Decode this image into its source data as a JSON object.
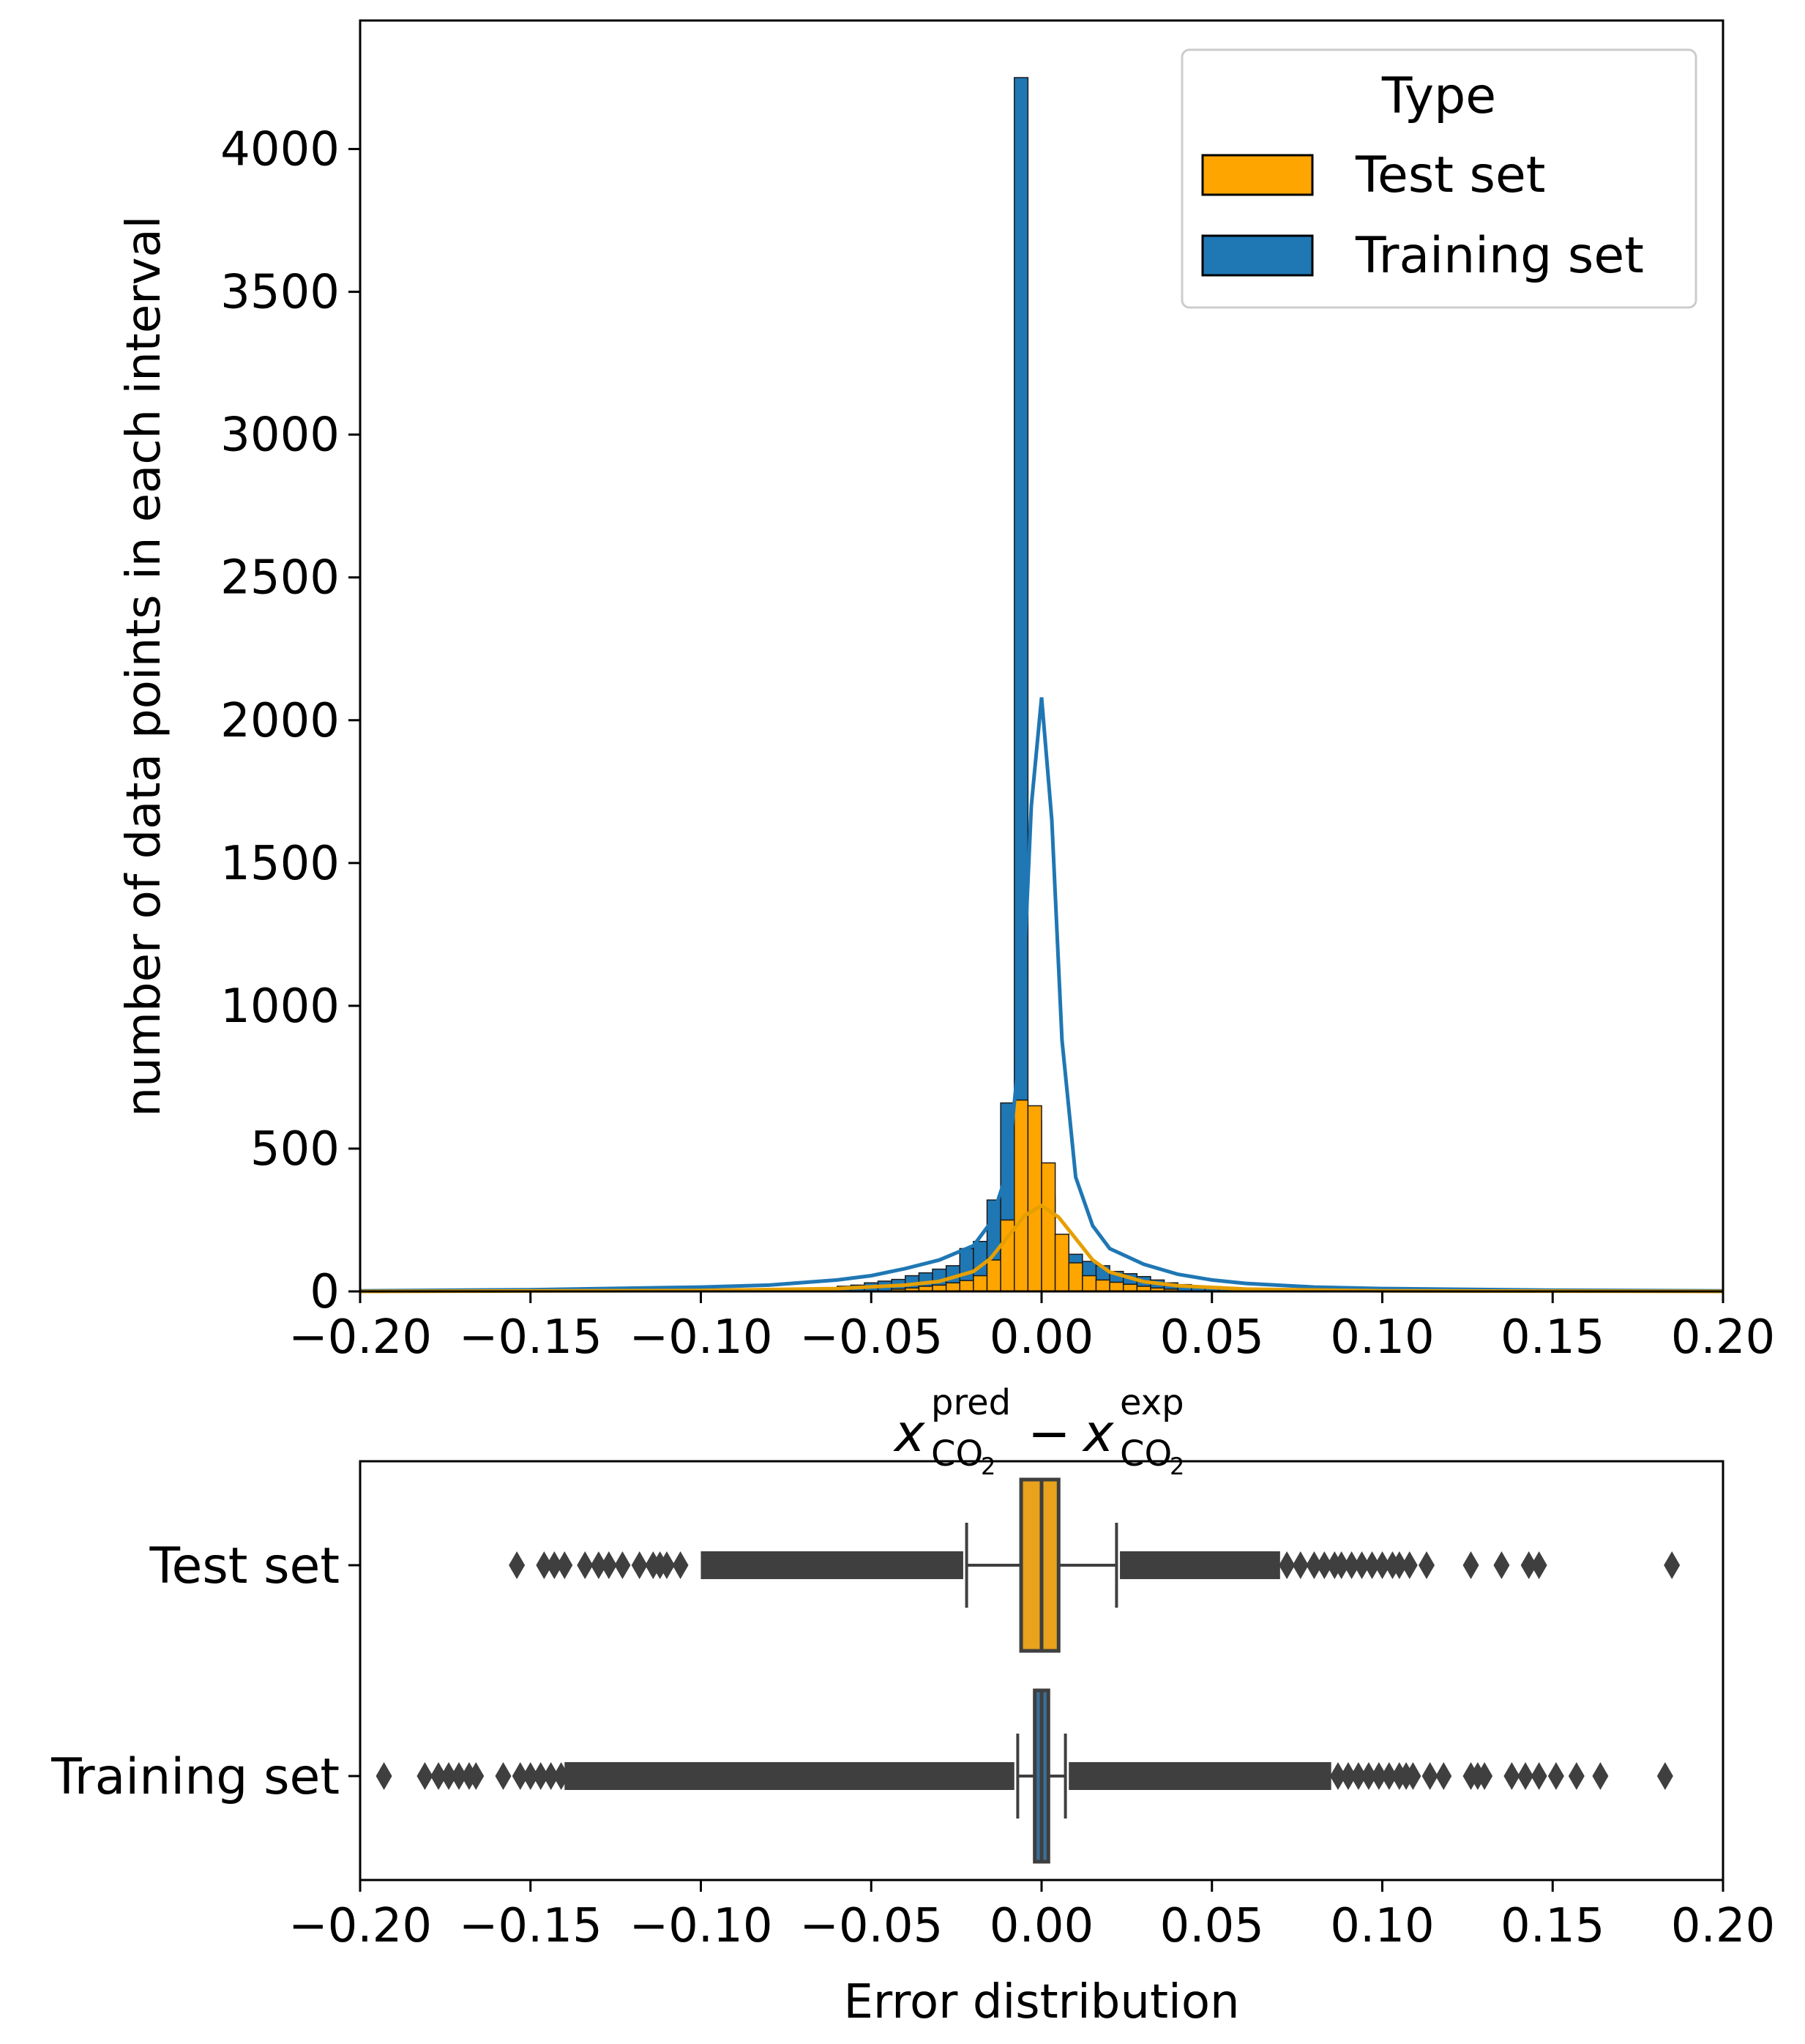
{
  "chart_data": [
    {
      "type": "histogram",
      "xlabel": "x_CO2^pred − x_CO2^exp",
      "xlabel_parts": {
        "base1": "x",
        "sup1": "pred",
        "sub1": "CO",
        "subsub1": "2",
        "op": "−",
        "base2": "x",
        "sup2": "exp",
        "sub2": "CO",
        "subsub2": "2"
      },
      "ylabel": "number of data points in each interval",
      "xlim": [
        -0.2,
        0.2
      ],
      "ylim": [
        0,
        4450
      ],
      "xticks": [
        -0.2,
        -0.15,
        -0.1,
        -0.05,
        0.0,
        0.05,
        0.1,
        0.15,
        0.2
      ],
      "xtick_labels": [
        "−0.20",
        "−0.15",
        "−0.10",
        "−0.05",
        "0.00",
        "0.05",
        "0.10",
        "0.15",
        "0.20"
      ],
      "yticks": [
        0,
        500,
        1000,
        1500,
        2000,
        2500,
        3000,
        3500,
        4000
      ],
      "ytick_labels": [
        "0",
        "500",
        "1000",
        "1500",
        "2000",
        "2500",
        "3000",
        "3500",
        "4000"
      ],
      "grid": false,
      "legend": {
        "title": "Type",
        "position": "top-right",
        "entries": [
          "Test set",
          "Training set"
        ]
      },
      "bin_width": 0.004,
      "series": [
        {
          "name": "Training set",
          "color": "#1f77b4",
          "bin_centers": [
            -0.058,
            -0.054,
            -0.05,
            -0.046,
            -0.042,
            -0.038,
            -0.034,
            -0.03,
            -0.026,
            -0.022,
            -0.018,
            -0.014,
            -0.01,
            -0.006,
            -0.002,
            0.002,
            0.006,
            0.01,
            0.014,
            0.018,
            0.022,
            0.026,
            0.03,
            0.034,
            0.038,
            0.042,
            0.046,
            0.05,
            0.054
          ],
          "counts": [
            18,
            22,
            30,
            36,
            42,
            55,
            65,
            78,
            90,
            150,
            175,
            320,
            660,
            4250,
            600,
            330,
            175,
            130,
            105,
            90,
            70,
            62,
            52,
            40,
            30,
            24,
            18,
            14,
            10
          ],
          "kde_x": [
            -0.2,
            -0.15,
            -0.1,
            -0.08,
            -0.06,
            -0.05,
            -0.04,
            -0.03,
            -0.02,
            -0.015,
            -0.01,
            -0.006,
            -0.003,
            0.0,
            0.003,
            0.006,
            0.01,
            0.015,
            0.02,
            0.03,
            0.04,
            0.05,
            0.06,
            0.08,
            0.1,
            0.15,
            0.2
          ],
          "kde_y": [
            2,
            6,
            15,
            22,
            40,
            55,
            80,
            110,
            160,
            240,
            420,
            900,
            1700,
            2080,
            1650,
            880,
            400,
            230,
            150,
            95,
            60,
            40,
            28,
            15,
            10,
            4,
            2
          ]
        },
        {
          "name": "Test set",
          "color": "#ffa500",
          "bin_centers": [
            -0.042,
            -0.038,
            -0.034,
            -0.03,
            -0.026,
            -0.022,
            -0.018,
            -0.014,
            -0.01,
            -0.006,
            -0.002,
            0.002,
            0.006,
            0.01,
            0.014,
            0.018,
            0.022,
            0.026,
            0.03,
            0.034,
            0.038
          ],
          "counts": [
            8,
            12,
            18,
            22,
            30,
            38,
            55,
            110,
            250,
            670,
            650,
            450,
            200,
            100,
            55,
            40,
            32,
            25,
            18,
            12,
            8
          ],
          "kde_x": [
            -0.2,
            -0.1,
            -0.06,
            -0.04,
            -0.03,
            -0.02,
            -0.015,
            -0.01,
            -0.005,
            0.0,
            0.005,
            0.01,
            0.015,
            0.02,
            0.03,
            0.04,
            0.06,
            0.1,
            0.2
          ],
          "kde_y": [
            0,
            3,
            10,
            22,
            35,
            70,
            115,
            190,
            265,
            300,
            260,
            185,
            110,
            68,
            34,
            20,
            8,
            2,
            0
          ]
        }
      ]
    },
    {
      "type": "box",
      "orientation": "horizontal",
      "xlabel": "Error distribution",
      "xlim": [
        -0.2,
        0.2
      ],
      "xticks": [
        -0.2,
        -0.15,
        -0.1,
        -0.05,
        0.0,
        0.05,
        0.1,
        0.15,
        0.2
      ],
      "xtick_labels": [
        "−0.20",
        "−0.15",
        "−0.10",
        "−0.05",
        "0.00",
        "0.05",
        "0.10",
        "0.15",
        "0.20"
      ],
      "categories": [
        "Test set",
        "Training set"
      ],
      "series": [
        {
          "name": "Test set",
          "color": "#e8a21b",
          "whisker_low": -0.022,
          "q1": -0.006,
          "median": 0.0,
          "q3": 0.005,
          "whisker_high": 0.022,
          "dense_low": [
            -0.1,
            -0.023
          ],
          "dense_high": [
            0.023,
            0.07
          ],
          "outliers": [
            -0.154,
            -0.146,
            -0.143,
            -0.14,
            -0.134,
            -0.13,
            -0.127,
            -0.123,
            -0.118,
            -0.114,
            -0.112,
            -0.11,
            -0.106,
            0.072,
            0.076,
            0.08,
            0.083,
            0.086,
            0.088,
            0.091,
            0.094,
            0.097,
            0.1,
            0.103,
            0.105,
            0.108,
            0.113,
            0.126,
            0.135,
            0.143,
            0.146,
            0.185
          ]
        },
        {
          "name": "Training set",
          "color": "#3a6f9a",
          "whisker_low": -0.007,
          "q1": -0.002,
          "median": 0.0,
          "q3": 0.002,
          "whisker_high": 0.007,
          "dense_low": [
            -0.14,
            -0.008
          ],
          "dense_high": [
            0.008,
            0.085
          ],
          "outliers": [
            -0.193,
            -0.181,
            -0.177,
            -0.174,
            -0.171,
            -0.168,
            -0.166,
            -0.158,
            -0.153,
            -0.15,
            -0.147,
            -0.144,
            -0.141,
            0.087,
            0.09,
            0.093,
            0.096,
            0.099,
            0.102,
            0.105,
            0.107,
            0.109,
            0.114,
            0.118,
            0.126,
            0.128,
            0.13,
            0.138,
            0.142,
            0.146,
            0.151,
            0.157,
            0.164,
            0.183
          ]
        }
      ]
    }
  ]
}
